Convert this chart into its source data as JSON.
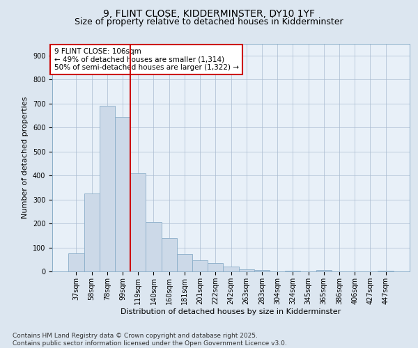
{
  "title1": "9, FLINT CLOSE, KIDDERMINSTER, DY10 1YF",
  "title2": "Size of property relative to detached houses in Kidderminster",
  "xlabel": "Distribution of detached houses by size in Kidderminster",
  "ylabel": "Number of detached properties",
  "categories": [
    "37sqm",
    "58sqm",
    "78sqm",
    "99sqm",
    "119sqm",
    "140sqm",
    "160sqm",
    "181sqm",
    "201sqm",
    "222sqm",
    "242sqm",
    "263sqm",
    "283sqm",
    "304sqm",
    "324sqm",
    "345sqm",
    "365sqm",
    "386sqm",
    "406sqm",
    "427sqm",
    "447sqm"
  ],
  "values": [
    75,
    325,
    690,
    645,
    410,
    205,
    138,
    73,
    47,
    35,
    20,
    10,
    5,
    0,
    4,
    0,
    5,
    0,
    0,
    0,
    4
  ],
  "bar_color": "#ccd9e8",
  "bar_edge_color": "#8aadc8",
  "vline_x_index": 3.5,
  "vline_color": "#cc0000",
  "annotation_text": "9 FLINT CLOSE: 106sqm\n← 49% of detached houses are smaller (1,314)\n50% of semi-detached houses are larger (1,322) →",
  "annotation_box_color": "#ffffff",
  "annotation_box_edge_color": "#cc0000",
  "ylim": [
    0,
    950
  ],
  "yticks": [
    0,
    100,
    200,
    300,
    400,
    500,
    600,
    700,
    800,
    900
  ],
  "bg_color": "#dce6f0",
  "plot_bg_color": "#e8f0f8",
  "footer": "Contains HM Land Registry data © Crown copyright and database right 2025.\nContains public sector information licensed under the Open Government Licence v3.0.",
  "title_fontsize": 10,
  "subtitle_fontsize": 9,
  "axis_label_fontsize": 8,
  "tick_fontsize": 7,
  "annotation_fontsize": 7.5,
  "footer_fontsize": 6.5
}
